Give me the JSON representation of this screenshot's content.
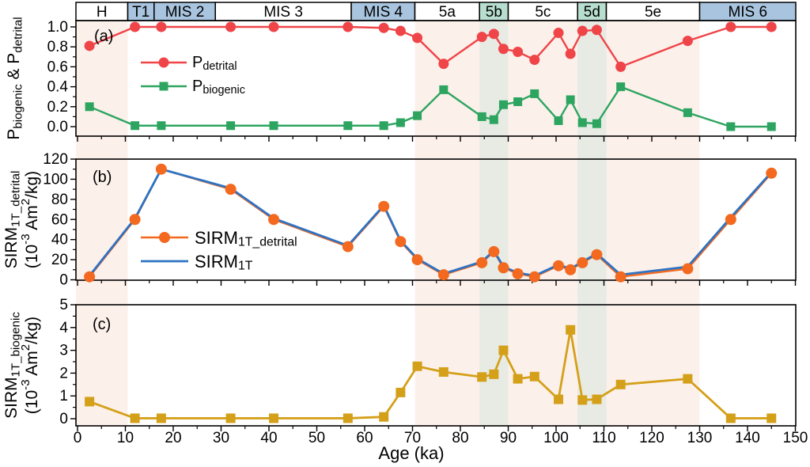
{
  "figure": {
    "x_axis": {
      "label": "Age (ka)",
      "min": 0,
      "max": 150,
      "major_step": 10,
      "minor_step": 5,
      "tick_labels": [
        "0",
        "10",
        "20",
        "30",
        "40",
        "50",
        "60",
        "70",
        "80",
        "90",
        "100",
        "110",
        "120",
        "130",
        "140",
        "150"
      ]
    },
    "stage_bar": {
      "border_color": "#000000",
      "segments": [
        {
          "label": "H",
          "from": 0,
          "to": 10.5,
          "fill": "#ffffff"
        },
        {
          "label": "T1",
          "from": 10.5,
          "to": 16,
          "fill": "#a8c4de"
        },
        {
          "label": "MIS 2",
          "from": 16,
          "to": 28.8,
          "fill": "#a8c4de"
        },
        {
          "label": "MIS 3",
          "from": 28.8,
          "to": 57.2,
          "fill": "#ffffff"
        },
        {
          "label": "MIS 4",
          "from": 57.2,
          "to": 70.5,
          "fill": "#a8c4de"
        },
        {
          "label": "5a",
          "from": 70.5,
          "to": 84,
          "fill": "#ffffff"
        },
        {
          "label": "5b",
          "from": 84,
          "to": 90,
          "fill": "#b8ded0"
        },
        {
          "label": "5c",
          "from": 90,
          "to": 104.5,
          "fill": "#ffffff"
        },
        {
          "label": "5d",
          "from": 104.5,
          "to": 110.5,
          "fill": "#b8ded0"
        },
        {
          "label": "5e",
          "from": 110.5,
          "to": 130,
          "fill": "#ffffff"
        },
        {
          "label": "MIS 6",
          "from": 130,
          "to": 150,
          "fill": "#a8c4de"
        }
      ]
    },
    "shaded_bands": [
      {
        "from": 0,
        "to": 10.5,
        "color": "#fcf0eb"
      },
      {
        "from": 70.5,
        "to": 130,
        "color": "#fcf0eb"
      },
      {
        "from": 84,
        "to": 90,
        "color": "#e7ebe4"
      },
      {
        "from": 104.5,
        "to": 110.5,
        "color": "#e7ebe4"
      }
    ]
  },
  "chart_data": [
    {
      "type": "line",
      "panel_label": "(a)",
      "ylabel_lines": [
        [
          [
            "P",
            ""
          ],
          [
            "biogenic",
            "sub"
          ],
          [
            " & P",
            ""
          ],
          [
            "detrital",
            "sub"
          ]
        ]
      ],
      "xlabel": "Age (ka)",
      "xlim": [
        0,
        150
      ],
      "ylim": [
        0,
        1.0
      ],
      "grid": false,
      "legend_position": "upper-left-inside",
      "ytick_values": [
        0,
        0.2,
        0.4,
        0.6,
        0.8,
        1.0
      ],
      "ytick_labels": [
        "0.0",
        "0.2",
        "0.4",
        "0.6",
        "0.8",
        "1.0"
      ],
      "yminor_values": [
        0.1,
        0.3,
        0.5,
        0.7,
        0.9
      ],
      "x": [
        2.5,
        12,
        17.5,
        32,
        41,
        56.5,
        64,
        67.5,
        71,
        76.5,
        84.5,
        87,
        89,
        92,
        95.5,
        100.5,
        103,
        105.5,
        108.5,
        113.5,
        127.5,
        136.5,
        145
      ],
      "series": [
        {
          "name": "P_detrital",
          "label_parts": [
            [
              "P",
              ""
            ],
            [
              "detrital",
              "sub"
            ]
          ],
          "color": "#ef4448",
          "marker": "circle",
          "values": [
            0.81,
            1.0,
            1.0,
            1.0,
            1.0,
            1.0,
            0.99,
            0.96,
            0.89,
            0.63,
            0.9,
            0.93,
            0.78,
            0.75,
            0.67,
            0.94,
            0.73,
            0.96,
            0.97,
            0.6,
            0.86,
            1.0,
            1.0
          ]
        },
        {
          "name": "P_biogenic",
          "label_parts": [
            [
              "P",
              ""
            ],
            [
              "biogenic",
              "sub"
            ]
          ],
          "color": "#2da560",
          "marker": "square",
          "values": [
            0.2,
            0.01,
            0.01,
            0.01,
            0.01,
            0.01,
            0.01,
            0.04,
            0.11,
            0.37,
            0.1,
            0.07,
            0.22,
            0.25,
            0.33,
            0.06,
            0.27,
            0.04,
            0.03,
            0.4,
            0.14,
            0.0,
            0.0
          ]
        }
      ]
    },
    {
      "type": "line",
      "panel_label": "(b)",
      "ylabel_lines": [
        [
          [
            "SIRM",
            ""
          ],
          [
            "1T_detrital",
            "sub"
          ]
        ],
        [
          [
            "(10",
            ""
          ],
          [
            "-3",
            "sup"
          ],
          [
            " Am",
            ""
          ],
          [
            "2",
            "sup"
          ],
          [
            "/kg)",
            ""
          ]
        ]
      ],
      "xlabel": "Age (ka)",
      "xlim": [
        0,
        150
      ],
      "ylim": [
        0,
        120
      ],
      "grid": false,
      "legend_position": "center-left-inside",
      "ytick_values": [
        0,
        20,
        40,
        60,
        80,
        100,
        120
      ],
      "ytick_labels": [
        "0",
        "20",
        "40",
        "60",
        "80",
        "100",
        "120"
      ],
      "yminor_values": [
        10,
        30,
        50,
        70,
        90,
        110
      ],
      "x": [
        2.5,
        12,
        17.5,
        32,
        41,
        56.5,
        64,
        67.5,
        71,
        76.5,
        84.5,
        87,
        89,
        92,
        95.5,
        100.5,
        103,
        105.5,
        108.5,
        113.5,
        127.5,
        136.5,
        145
      ],
      "series": [
        {
          "name": "SIRM_1T_detrital",
          "label_parts": [
            [
              "SIRM",
              ""
            ],
            [
              "1T_detrital",
              "sub"
            ]
          ],
          "color": "#f2691f",
          "marker": "circle",
          "values": [
            3,
            60,
            110,
            90,
            60,
            33,
            73,
            38,
            20,
            5,
            17,
            28,
            12,
            6,
            3,
            14,
            10,
            17,
            25,
            3,
            11,
            60,
            106
          ]
        },
        {
          "name": "SIRM_1T",
          "label_parts": [
            [
              "SIRM",
              ""
            ],
            [
              "1T",
              "sub"
            ]
          ],
          "color": "#2e72c2",
          "marker": "none",
          "values": [
            4,
            61,
            110,
            91,
            61,
            34,
            74,
            39,
            21,
            6,
            18,
            29,
            13,
            7,
            4,
            15,
            11,
            18,
            26,
            5,
            13,
            62,
            107
          ]
        }
      ]
    },
    {
      "type": "line",
      "panel_label": "(c)",
      "ylabel_lines": [
        [
          [
            "SIRM",
            ""
          ],
          [
            "1T_biogenic",
            "sub"
          ]
        ],
        [
          [
            "(10",
            ""
          ],
          [
            "-3",
            "sup"
          ],
          [
            " Am",
            ""
          ],
          [
            "2",
            "sup"
          ],
          [
            "/kg)",
            ""
          ]
        ]
      ],
      "xlabel": "Age (ka)",
      "xlim": [
        0,
        150
      ],
      "ylim": [
        0,
        5
      ],
      "grid": false,
      "legend_position": "none",
      "ytick_values": [
        0,
        1,
        2,
        3,
        4,
        5
      ],
      "ytick_labels": [
        "0",
        "1",
        "2",
        "3",
        "4",
        "5"
      ],
      "yminor_values": [
        0.5,
        1.5,
        2.5,
        3.5,
        4.5
      ],
      "x": [
        2.5,
        12,
        17.5,
        32,
        41,
        56.5,
        64,
        67.5,
        71,
        76.5,
        84.5,
        87,
        89,
        92,
        95.5,
        100.5,
        103,
        105.5,
        108.5,
        113.5,
        127.5,
        136.5,
        145
      ],
      "series": [
        {
          "name": "SIRM_1T_biogenic",
          "label_parts": [
            [
              "SIRM",
              ""
            ],
            [
              "1T_biogenic",
              "sub"
            ]
          ],
          "color": "#d4a019",
          "marker": "square",
          "values": [
            0.75,
            0.02,
            0.02,
            0.02,
            0.02,
            0.02,
            0.08,
            1.15,
            2.3,
            2.05,
            1.83,
            1.95,
            3.0,
            1.75,
            1.85,
            0.85,
            3.9,
            0.82,
            0.85,
            1.5,
            1.75,
            0.02,
            0.02
          ]
        }
      ]
    }
  ]
}
